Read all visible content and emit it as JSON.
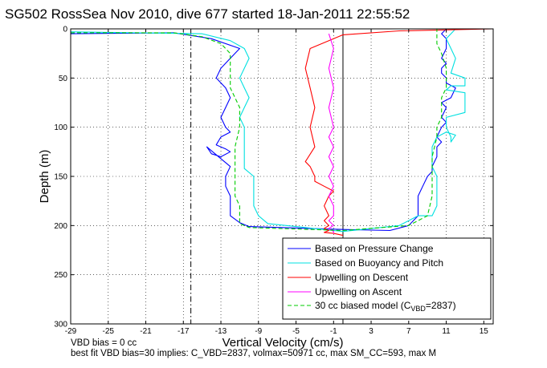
{
  "chart_data": {
    "type": "line",
    "title": "SG502 RossSea Nov 2010, dive 677 started 18-Jan-2011 22:55:52",
    "xlabel": "Vertical Velocity (cm/s)",
    "ylabel": "Depth (m)",
    "xlim": [
      -29,
      16
    ],
    "ylim": [
      0,
      300
    ],
    "y_reversed": true,
    "grid": true,
    "legend_position": "bottom-right",
    "x_ticks": [
      -29,
      -25,
      -21,
      -17,
      -13,
      -9,
      -5,
      -1,
      3,
      7,
      11,
      15
    ],
    "y_ticks": [
      0,
      50,
      100,
      150,
      200,
      250,
      300
    ],
    "reference_lines": [
      {
        "x": -16.2,
        "style": "dash-dot",
        "color": "#000000"
      },
      {
        "x": 0,
        "style": "solid",
        "color": "#000000"
      }
    ],
    "annotations": [
      "VBD bias = 0 cc",
      "best fit VBD bias=30 implies: C_VBD=2837, volmax=50971 cc, max SM_CC=593, max M"
    ],
    "legend": {
      "entries": [
        "Based on Pressure Change",
        "Based on Buoyancy and Pitch",
        "Upwelling on Descent",
        "Upwelling on Ascent"
      ],
      "model_prefix": "30 cc biased model (C",
      "model_sub": "VBD",
      "model_suffix": "=2837)"
    },
    "series": [
      {
        "name": "Based on Pressure Change",
        "color": "#0000ff",
        "style": "solid",
        "segments": [
          {
            "x": [
              -29,
              -18,
              -14,
              -11,
              -12,
              -13,
              -13.5,
              -12.5,
              -12,
              -12.5,
              -13,
              -12.5,
              -12,
              -13,
              -13.5,
              -12.5,
              -12,
              -13,
              -14,
              -14.5,
              -13,
              -12,
              -12.5,
              -12.5,
              -12,
              -12,
              -12,
              -11,
              -10,
              0
            ],
            "y": [
              5,
              4,
              10,
              20,
              30,
              40,
              50,
              60,
              70,
              80,
              90,
              100,
              105,
              110,
              118,
              122,
              125,
              130,
              127,
              120,
              132,
              140,
              150,
              160,
              170,
              180,
              190,
              197,
              201,
              204
            ]
          },
          {
            "x": [
              0,
              5,
              7,
              7.5,
              8,
              8,
              8,
              8.5,
              9,
              9.5,
              9.5,
              10,
              10,
              10.5,
              10,
              10.5,
              11,
              10.5,
              11,
              10.5,
              11.5,
              12,
              11,
              11,
              10.5,
              10.5,
              11,
              10.5,
              11,
              11,
              10.5,
              11
            ],
            "y": [
              204,
              205,
              200,
              195,
              190,
              180,
              170,
              160,
              150,
              145,
              140,
              130,
              120,
              115,
              110,
              100,
              95,
              90,
              80,
              75,
              70,
              60,
              55,
              50,
              45,
              40,
              35,
              30,
              20,
              10,
              5,
              0
            ]
          }
        ]
      },
      {
        "name": "Based on Buoyancy and Pitch",
        "color": "#00e0e0",
        "style": "solid",
        "segments": [
          {
            "x": [
              -29,
              -15,
              -12,
              -10.5,
              -10,
              -10.5,
              -11,
              -10.5,
              -10,
              -10.5,
              -11,
              -10.5,
              -10.5,
              -10.5,
              -10.5,
              -9.5,
              -9.5,
              -9.5,
              -9.5,
              -9,
              -8,
              0
            ],
            "y": [
              3,
              5,
              12,
              20,
              30,
              40,
              50,
              60,
              70,
              80,
              90,
              100,
              120,
              138,
              142,
              150,
              160,
              170,
              180,
              190,
              198,
              206
            ]
          },
          {
            "x": [
              0,
              6,
              8,
              9.5,
              10,
              10,
              10,
              10,
              9.5,
              9.5,
              9.5,
              10,
              11,
              12,
              11.5,
              11.5,
              11,
              11,
              13,
              13,
              11,
              11.5,
              13,
              13,
              11.5,
              12,
              11.5,
              11,
              12
            ],
            "y": [
              206,
              200,
              190,
              190,
              180,
              170,
              160,
              150,
              140,
              130,
              120,
              110,
              105,
              108,
              115,
              110,
              100,
              90,
              85,
              65,
              62,
              58,
              58,
              50,
              45,
              30,
              20,
              10,
              0
            ]
          }
        ]
      },
      {
        "name": "Upwelling on Descent",
        "color": "#ff0000",
        "style": "solid",
        "segments": [
          {
            "x": [
              16,
              6,
              0,
              -3.5,
              -4,
              -3.5,
              -3,
              -3.5,
              -3,
              -4,
              -3.5,
              -3,
              -3,
              -2,
              -1,
              -1.5,
              -2,
              -1.5,
              -2,
              -1.5,
              -2,
              -1.5,
              -2,
              -1,
              0
            ],
            "y": [
              0,
              2,
              6,
              20,
              40,
              60,
              80,
              100,
              120,
              135,
              140,
              150,
              155,
              160,
              165,
              170,
              180,
              190,
              195,
              200,
              203,
              205,
              207,
              208,
              210
            ]
          }
        ]
      },
      {
        "name": "Upwelling on Ascent",
        "color": "#ff00ff",
        "style": "solid",
        "segments": [
          {
            "x": [
              -1.5,
              -1,
              -1.5,
              -1,
              -1.5,
              -1,
              -1.5,
              -1,
              -1.5,
              -1,
              -1.5,
              -1,
              -1.5,
              -1,
              -1,
              -1.5,
              -1,
              -1.5,
              -1,
              -1
            ],
            "y": [
              5,
              20,
              40,
              60,
              80,
              100,
              110,
              120,
              130,
              140,
              150,
              160,
              170,
              180,
              190,
              195,
              200,
              203,
              206,
              208
            ]
          }
        ]
      },
      {
        "name": "30 cc biased model (CVBD=2837)",
        "color": "#00cc00",
        "style": "dashed",
        "segments": [
          {
            "x": [
              -29,
              -18,
              -15,
              -13,
              -12,
              -12,
              -12,
              -11.5,
              -11,
              -11,
              -11.5,
              -11.5,
              -11.5,
              -11.5,
              -11,
              -11,
              -11,
              -10,
              0
            ],
            "y": [
              4,
              4,
              8,
              15,
              25,
              40,
              60,
              70,
              80,
              100,
              120,
              140,
              160,
              170,
              180,
              190,
              198,
              202,
              205
            ]
          },
          {
            "x": [
              0,
              7,
              9,
              9.5,
              9.5,
              9.5,
              10,
              10,
              10.5,
              10.5,
              11,
              11,
              10.5,
              10,
              10,
              10
            ],
            "y": [
              205,
              200,
              190,
              170,
              150,
              130,
              110,
              100,
              90,
              70,
              60,
              40,
              25,
              15,
              5,
              0
            ]
          }
        ]
      }
    ]
  }
}
